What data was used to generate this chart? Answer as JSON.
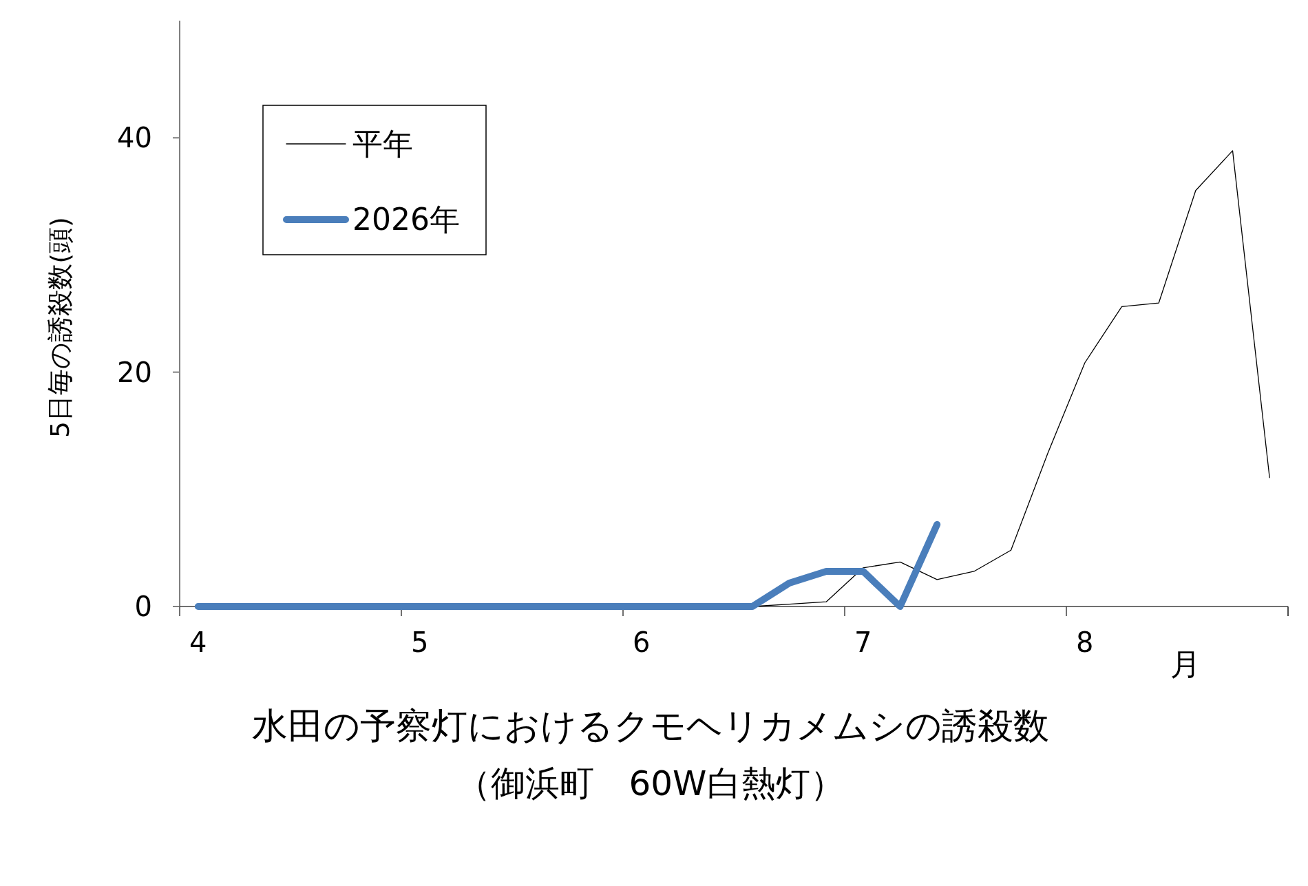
{
  "chart_data": {
    "type": "line",
    "title": "水田の予察灯におけるクモヘリカメムシの誘殺数",
    "subtitle": "（御浜町　60W白熱灯）",
    "ylabel": "5日毎の誘殺数(頭)",
    "annotations": [
      "月"
    ],
    "categories": [
      "4",
      null,
      null,
      null,
      null,
      null,
      "5",
      null,
      null,
      null,
      null,
      null,
      "6",
      null,
      null,
      null,
      null,
      null,
      "7",
      null,
      null,
      null,
      null,
      null,
      "8",
      null,
      null,
      null,
      null,
      null
    ],
    "series": [
      {
        "name": "平年",
        "color": "#000000",
        "values": [
          null,
          null,
          null,
          null,
          null,
          null,
          null,
          null,
          null,
          null,
          null,
          null,
          null,
          null,
          null,
          0,
          0.2,
          0.4,
          3.3,
          3.8,
          2.3,
          3.0,
          4.8,
          13.1,
          20.8,
          25.6,
          25.9,
          35.5,
          38.9,
          11
        ]
      },
      {
        "name": "2026年",
        "color": "#4a7ebb",
        "values": [
          0,
          0,
          0,
          0,
          0,
          0,
          0,
          0,
          0,
          0,
          0,
          0,
          0,
          0,
          0,
          0,
          2,
          3,
          3,
          0,
          7,
          null,
          null,
          null,
          null,
          null,
          null,
          null,
          null,
          null
        ]
      }
    ],
    "ylim": [
      0,
      50
    ],
    "yticks": [
      0,
      20,
      40
    ],
    "grid": false,
    "legend": "top left",
    "marker": "none"
  }
}
